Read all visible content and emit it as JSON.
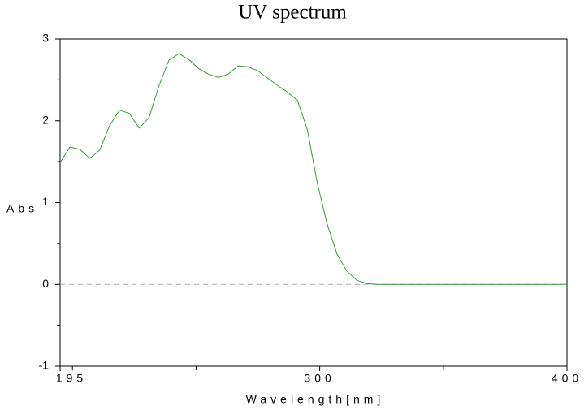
{
  "chart_data": {
    "type": "line",
    "title": "UV spectrum",
    "x_label": "Wavelength[nm]",
    "y_label": "Abs",
    "xlim": [
      195,
      400
    ],
    "ylim": [
      -1,
      3
    ],
    "xticks": [
      195,
      300,
      400
    ],
    "x_minor_ticks": [
      200,
      250,
      350
    ],
    "yticks": [
      -1,
      0,
      1,
      2,
      3
    ],
    "y_minor_ticks": [
      -0.5,
      0.5,
      1.5,
      2.5
    ],
    "zero_line": true,
    "series": [
      {
        "name": "Abs",
        "color": "#3c9a3c",
        "x": [
          195,
          199,
          203,
          207,
          211,
          215,
          219,
          223,
          227,
          231,
          235,
          239,
          243,
          247,
          251,
          255,
          259,
          263,
          267,
          271,
          275,
          279,
          283,
          287,
          291,
          295,
          299,
          303,
          307,
          311,
          315,
          319,
          323,
          340,
          360,
          380,
          400
        ],
        "values": [
          1.49,
          1.68,
          1.65,
          1.54,
          1.64,
          1.94,
          2.13,
          2.09,
          1.91,
          2.04,
          2.43,
          2.74,
          2.82,
          2.75,
          2.64,
          2.57,
          2.53,
          2.57,
          2.67,
          2.66,
          2.61,
          2.52,
          2.43,
          2.35,
          2.25,
          1.89,
          1.24,
          0.74,
          0.37,
          0.16,
          0.05,
          0.01,
          0,
          0,
          0,
          0,
          0
        ]
      }
    ]
  }
}
